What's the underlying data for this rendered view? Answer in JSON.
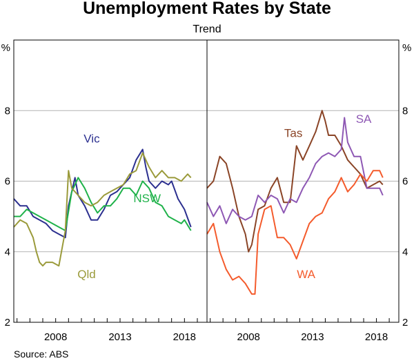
{
  "chart_data": {
    "type": "line",
    "title": "Unemployment Rates by State",
    "subtitle": "Trend",
    "source": "Source:   ABS",
    "y_unit": "%",
    "ylim": [
      2,
      10
    ],
    "yticks": [
      2,
      4,
      6,
      8
    ],
    "xlim": [
      2004.75,
      2019.75
    ],
    "xticks": [
      2008,
      2013,
      2018
    ],
    "grid": true,
    "panels": [
      {
        "series": [
          {
            "name": "Vic",
            "color": "#2b2f8f",
            "x": [
              2004.75,
              2005.25,
              2005.75,
              2006.25,
              2006.75,
              2007.25,
              2007.75,
              2008.25,
              2008.75,
              2009.0,
              2009.5,
              2009.75,
              2010.25,
              2010.75,
              2011.25,
              2011.75,
              2012.25,
              2012.75,
              2013.25,
              2013.75,
              2014.25,
              2014.75,
              2015.0,
              2015.25,
              2015.75,
              2016.25,
              2016.75,
              2017.0,
              2017.5,
              2018.0,
              2018.5
            ],
            "y": [
              5.5,
              5.3,
              5.3,
              5.0,
              4.9,
              4.8,
              4.6,
              4.5,
              4.4,
              5.3,
              6.1,
              5.6,
              5.3,
              4.9,
              4.9,
              5.2,
              5.6,
              5.7,
              5.9,
              6.1,
              6.6,
              6.9,
              6.4,
              6.0,
              5.8,
              6.0,
              5.9,
              6.0,
              5.5,
              5.2,
              4.7
            ]
          },
          {
            "name": "NSW",
            "color": "#1fb24a",
            "x": [
              2004.75,
              2005.25,
              2005.75,
              2006.25,
              2006.75,
              2007.25,
              2007.75,
              2008.25,
              2008.75,
              2009.25,
              2009.75,
              2010.25,
              2010.75,
              2011.25,
              2011.75,
              2012.25,
              2012.75,
              2013.25,
              2013.75,
              2014.25,
              2014.75,
              2015.25,
              2015.75,
              2016.25,
              2016.75,
              2017.25,
              2017.75,
              2018.0,
              2018.5
            ],
            "y": [
              5.0,
              5.0,
              5.2,
              5.1,
              5.0,
              4.9,
              4.8,
              4.7,
              4.6,
              5.7,
              6.1,
              5.8,
              5.4,
              5.1,
              5.3,
              5.3,
              5.5,
              5.8,
              5.8,
              5.6,
              6.0,
              5.8,
              5.4,
              5.3,
              5.0,
              4.9,
              4.8,
              4.9,
              4.6
            ]
          },
          {
            "name": "Qld",
            "color": "#9a9a3a",
            "x": [
              2004.75,
              2005.25,
              2005.75,
              2006.25,
              2006.5,
              2006.75,
              2007.0,
              2007.25,
              2007.75,
              2008.25,
              2008.75,
              2009.0,
              2009.25,
              2009.75,
              2010.25,
              2010.75,
              2011.25,
              2011.75,
              2012.25,
              2012.75,
              2013.25,
              2013.75,
              2014.25,
              2014.75,
              2015.25,
              2015.75,
              2016.25,
              2016.75,
              2017.25,
              2017.75,
              2018.25,
              2018.5
            ],
            "y": [
              4.7,
              4.9,
              4.8,
              4.4,
              4.0,
              3.7,
              3.6,
              3.7,
              3.7,
              3.6,
              4.6,
              6.3,
              5.8,
              5.6,
              5.4,
              5.3,
              5.4,
              5.6,
              5.7,
              5.8,
              5.9,
              6.2,
              6.3,
              6.8,
              6.4,
              6.1,
              6.3,
              6.1,
              6.1,
              6.0,
              6.2,
              6.1
            ]
          }
        ],
        "annotations": [
          "Vic",
          "NSW",
          "Qld"
        ]
      },
      {
        "series": [
          {
            "name": "Tas",
            "color": "#8a4426",
            "x": [
              2004.75,
              2005.25,
              2005.75,
              2006.25,
              2006.75,
              2007.25,
              2007.75,
              2008.0,
              2008.25,
              2008.75,
              2009.25,
              2009.75,
              2010.25,
              2010.75,
              2011.25,
              2011.75,
              2012.25,
              2012.75,
              2013.25,
              2013.75,
              2014.0,
              2014.25,
              2014.75,
              2015.25,
              2015.75,
              2016.25,
              2016.75,
              2017.25,
              2017.75,
              2018.25,
              2018.5
            ],
            "y": [
              5.8,
              6.0,
              6.7,
              6.5,
              5.8,
              5.0,
              4.5,
              4.0,
              4.2,
              5.2,
              5.3,
              5.8,
              6.1,
              5.4,
              5.4,
              7.0,
              6.6,
              7.0,
              7.4,
              8.0,
              7.7,
              7.3,
              7.3,
              7.0,
              6.6,
              6.4,
              6.2,
              5.8,
              5.9,
              6.0,
              5.9
            ]
          },
          {
            "name": "SA",
            "color": "#8e58b4",
            "x": [
              2004.75,
              2005.25,
              2005.75,
              2006.25,
              2006.75,
              2007.25,
              2007.75,
              2008.25,
              2008.75,
              2009.25,
              2009.75,
              2010.25,
              2010.75,
              2011.25,
              2011.75,
              2012.25,
              2012.75,
              2013.25,
              2013.75,
              2014.25,
              2014.75,
              2015.25,
              2015.5,
              2015.75,
              2016.25,
              2016.75,
              2017.25,
              2017.75,
              2018.25,
              2018.5
            ],
            "y": [
              5.4,
              5.0,
              5.3,
              4.8,
              5.2,
              5.0,
              4.9,
              5.0,
              5.6,
              5.4,
              5.6,
              5.5,
              5.1,
              5.5,
              5.4,
              5.8,
              6.1,
              6.5,
              6.7,
              6.8,
              6.7,
              6.9,
              7.8,
              7.1,
              6.7,
              6.7,
              5.8,
              5.8,
              5.8,
              5.6
            ]
          },
          {
            "name": "WA",
            "color": "#f45b2c",
            "x": [
              2004.75,
              2005.25,
              2005.75,
              2006.25,
              2006.75,
              2007.25,
              2007.75,
              2008.25,
              2008.5,
              2008.75,
              2009.25,
              2009.75,
              2010.25,
              2010.75,
              2011.25,
              2011.75,
              2012.25,
              2012.75,
              2013.25,
              2013.75,
              2014.25,
              2014.75,
              2015.25,
              2015.75,
              2016.25,
              2016.75,
              2017.25,
              2017.75,
              2018.25,
              2018.5
            ],
            "y": [
              4.5,
              4.8,
              4.0,
              3.5,
              3.2,
              3.3,
              3.1,
              2.8,
              2.8,
              4.5,
              5.2,
              5.3,
              4.4,
              4.4,
              4.2,
              3.8,
              4.3,
              4.8,
              5.0,
              5.1,
              5.5,
              5.7,
              6.1,
              5.7,
              5.9,
              6.2,
              6.0,
              6.3,
              6.3,
              6.1
            ]
          }
        ],
        "annotations": [
          "Tas",
          "SA",
          "WA"
        ]
      }
    ]
  }
}
